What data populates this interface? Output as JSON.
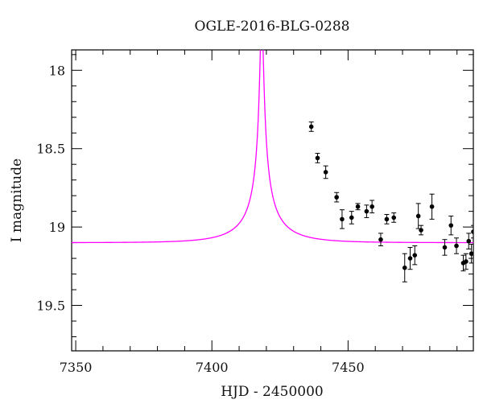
{
  "chart_data": {
    "type": "scatter",
    "title": "OGLE-2016-BLG-0288",
    "xlabel": "HJD - 2450000",
    "ylabel": "I magnitude",
    "xlim": [
      7348.5,
      7496
    ],
    "ylim": [
      19.79,
      17.87
    ],
    "y_inverted": true,
    "grid": false,
    "x_ticks": [
      7350,
      7400,
      7450
    ],
    "y_ticks": [
      18,
      18.5,
      19,
      19.5
    ],
    "x_tick_labels": [
      "7350",
      "7400",
      "7450"
    ],
    "y_tick_labels": [
      "18",
      "18.5",
      "19",
      "19.5"
    ],
    "colors": {
      "model": "#ff00ff",
      "points": "#000000"
    },
    "series": [
      {
        "type": "scatter_errorbar",
        "points": [
          {
            "x": 7436.5,
            "y": 18.36,
            "err": 0.03
          },
          {
            "x": 7438.8,
            "y": 18.56,
            "err": 0.03
          },
          {
            "x": 7441.8,
            "y": 18.65,
            "err": 0.04
          },
          {
            "x": 7445.8,
            "y": 18.81,
            "err": 0.03
          },
          {
            "x": 7447.8,
            "y": 18.95,
            "err": 0.06
          },
          {
            "x": 7451.3,
            "y": 18.94,
            "err": 0.04
          },
          {
            "x": 7453.6,
            "y": 18.87,
            "err": 0.02
          },
          {
            "x": 7456.8,
            "y": 18.9,
            "err": 0.04
          },
          {
            "x": 7458.8,
            "y": 18.87,
            "err": 0.04
          },
          {
            "x": 7462.0,
            "y": 19.08,
            "err": 0.04
          },
          {
            "x": 7464.2,
            "y": 18.95,
            "err": 0.03
          },
          {
            "x": 7466.8,
            "y": 18.94,
            "err": 0.03
          },
          {
            "x": 7470.8,
            "y": 19.26,
            "err": 0.09
          },
          {
            "x": 7472.8,
            "y": 19.2,
            "err": 0.07
          },
          {
            "x": 7474.5,
            "y": 19.18,
            "err": 0.06
          },
          {
            "x": 7475.8,
            "y": 18.93,
            "err": 0.08
          },
          {
            "x": 7476.8,
            "y": 19.02,
            "err": 0.03
          },
          {
            "x": 7480.8,
            "y": 18.87,
            "err": 0.08
          },
          {
            "x": 7485.5,
            "y": 19.13,
            "err": 0.05
          },
          {
            "x": 7487.8,
            "y": 18.99,
            "err": 0.06
          },
          {
            "x": 7489.8,
            "y": 19.12,
            "err": 0.05
          },
          {
            "x": 7492.3,
            "y": 19.23,
            "err": 0.05
          },
          {
            "x": 7493.3,
            "y": 19.22,
            "err": 0.05
          },
          {
            "x": 7494.3,
            "y": 19.09,
            "err": 0.05
          },
          {
            "x": 7495.3,
            "y": 19.17,
            "err": 0.06
          },
          {
            "x": 7496.0,
            "y": 19.03,
            "err": 0.04
          }
        ]
      },
      {
        "type": "line",
        "model": {
          "t0": 7418.3,
          "u0": 0.03,
          "tE": 18,
          "fs": 0.09,
          "baseline_mag": 19.1
        },
        "x_range": [
          7348.5,
          7496
        ]
      }
    ]
  }
}
